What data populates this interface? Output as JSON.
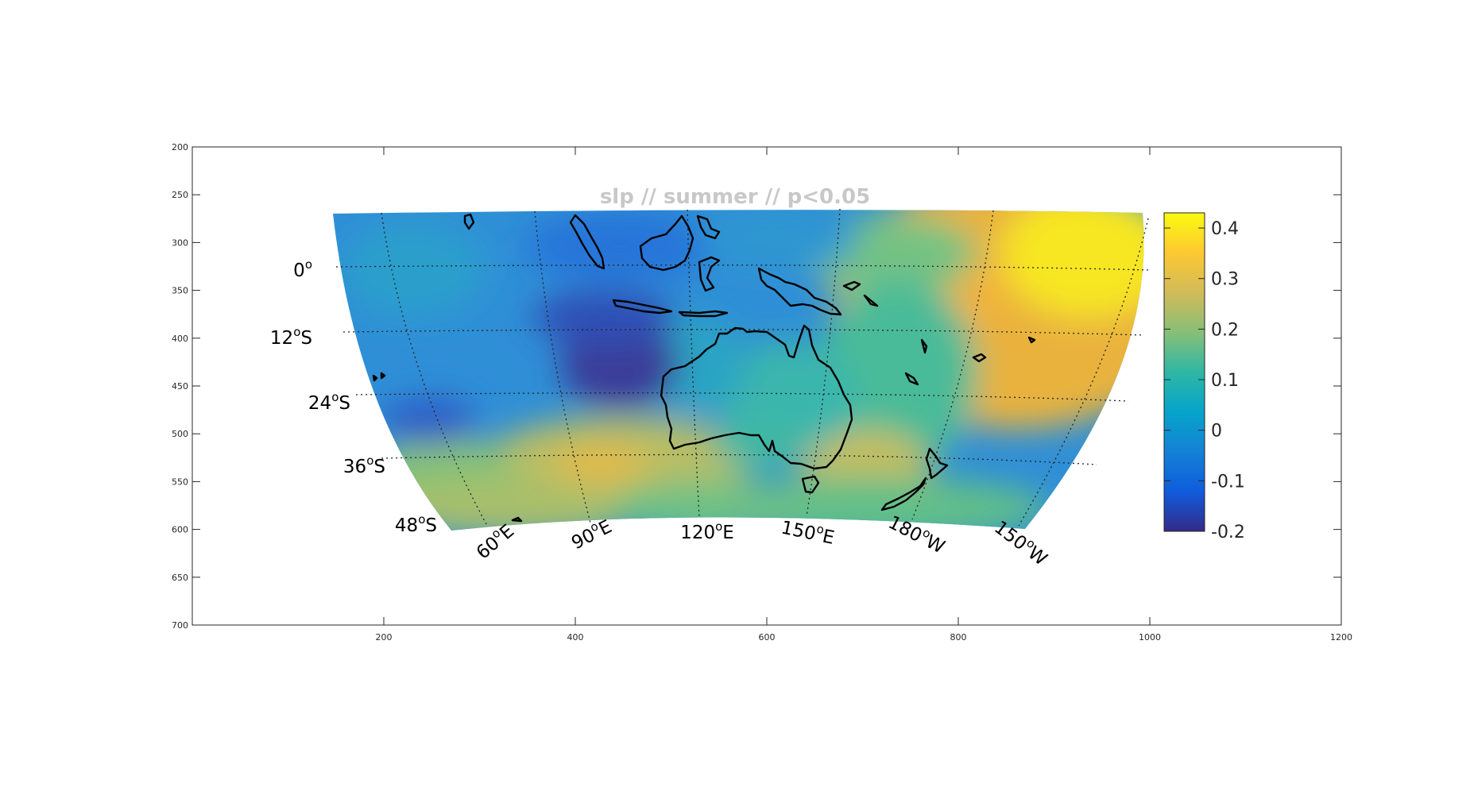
{
  "title": "slp // summer // p<0.05",
  "axes": {
    "x_ticks": [
      "200",
      "400",
      "600",
      "800",
      "1000",
      "1200"
    ],
    "y_ticks": [
      "200",
      "250",
      "300",
      "350",
      "400",
      "450",
      "500",
      "550",
      "600",
      "650",
      "700"
    ]
  },
  "lat_labels": [
    "0",
    "12",
    "24",
    "36",
    "48"
  ],
  "lat_suffix": {
    "0": "",
    "12": "S",
    "24": "S",
    "36": "S",
    "48": "S"
  },
  "lon_labels": [
    {
      "num": "60",
      "dir": "E"
    },
    {
      "num": "90",
      "dir": "E"
    },
    {
      "num": "120",
      "dir": "E"
    },
    {
      "num": "150",
      "dir": "E"
    },
    {
      "num": "180",
      "dir": "W"
    },
    {
      "num": "150",
      "dir": "W"
    }
  ],
  "degree_symbol": "o",
  "colorbar": {
    "ticks": [
      "0.4",
      "0.3",
      "0.2",
      "0.1",
      "0",
      "-0.1",
      "-0.2"
    ],
    "min": -0.2,
    "max": 0.43,
    "colormap": "parula",
    "colors": [
      "#352a87",
      "#0f5cdd",
      "#1481d6",
      "#06a4ca",
      "#2eb7a4",
      "#87bf77",
      "#d1bb59",
      "#fec832",
      "#f9fb0e"
    ]
  },
  "chart_data": {
    "type": "heatmap",
    "title": "slp // summer // p<0.05",
    "projection": "map, latitude 0 to 48S, longitude 30E to 150W",
    "xlim": [
      1,
      1200
    ],
    "ylim": [
      200,
      700
    ],
    "color_range": [
      -0.2,
      0.43
    ],
    "regions": [
      {
        "area": "northeast Pacific (east of 170W, near equator)",
        "value": 0.4
      },
      {
        "area": "central South Pacific near 150W",
        "value": 0.33
      },
      {
        "area": "South Pacific north of New Zealand",
        "value": 0.3
      },
      {
        "area": "Indian Ocean west of Australia (90E-115E, 15S-30S)",
        "value": -0.2
      },
      {
        "area": "Maritime Continent / Indonesia",
        "value": -0.12
      },
      {
        "area": "western Indian Ocean",
        "value": -0.08
      },
      {
        "area": "southern Indian Ocean near 90E, 40S",
        "value": 0.28
      },
      {
        "area": "Tasman Sea",
        "value": 0.22
      },
      {
        "area": "Southern Ocean south of Australia",
        "value": 0.12
      },
      {
        "area": "Australia interior",
        "value": 0.0
      }
    ]
  }
}
